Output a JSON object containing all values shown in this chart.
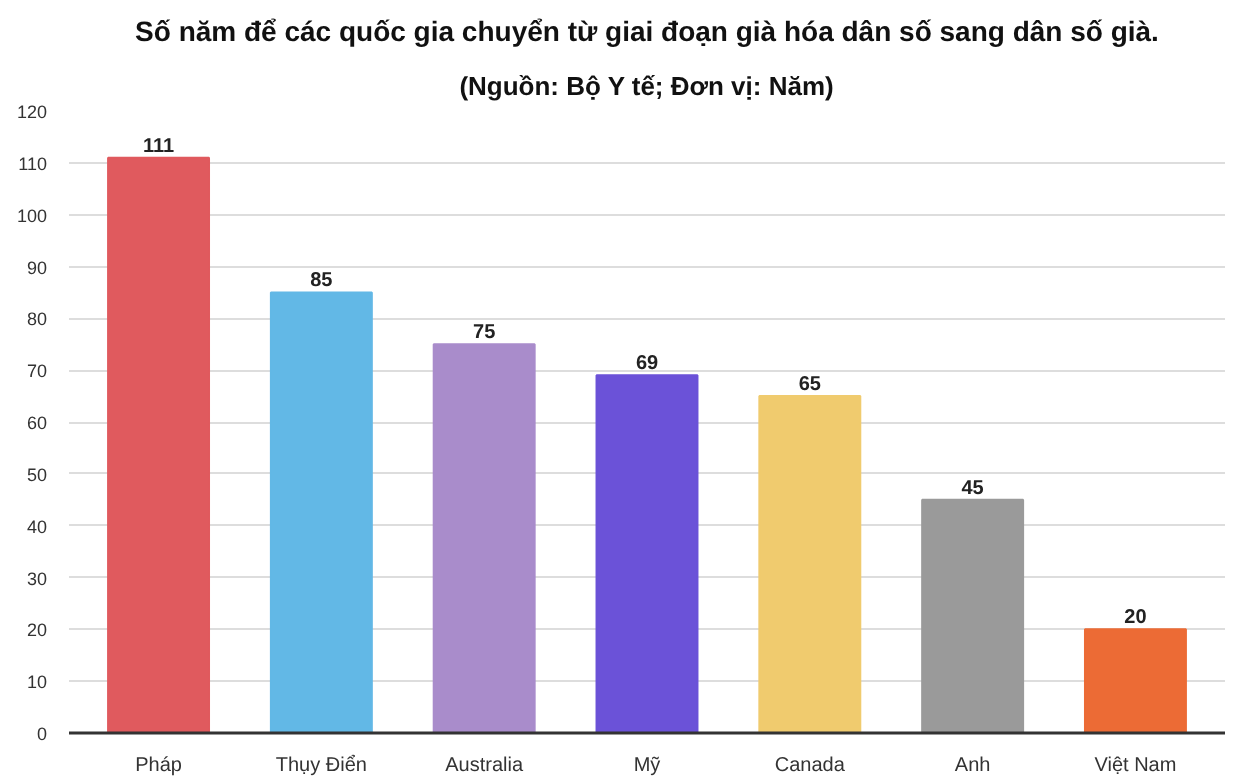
{
  "chart_data": {
    "type": "bar",
    "title": "Số năm để các quốc gia chuyển từ giai đoạn già hóa dân số sang dân số già.",
    "subtitle": "(Nguồn: Bộ Y tế; Đơn vị: Năm)",
    "categories": [
      "Pháp",
      "Thụy Điển",
      "Australia",
      "Mỹ",
      "Canada",
      "Anh",
      "Việt Nam"
    ],
    "values": [
      111,
      85,
      75,
      69,
      65,
      45,
      20
    ],
    "colors": [
      "#e05a5e",
      "#62b8e6",
      "#a98ccb",
      "#6b52d8",
      "#f0cb6e",
      "#9a9a9a",
      "#ec6b35"
    ],
    "ylim": [
      0,
      120
    ],
    "yticks": [
      0,
      10,
      20,
      30,
      40,
      50,
      60,
      70,
      80,
      90,
      100,
      110,
      120
    ],
    "grid": "y",
    "data_labels": true
  }
}
